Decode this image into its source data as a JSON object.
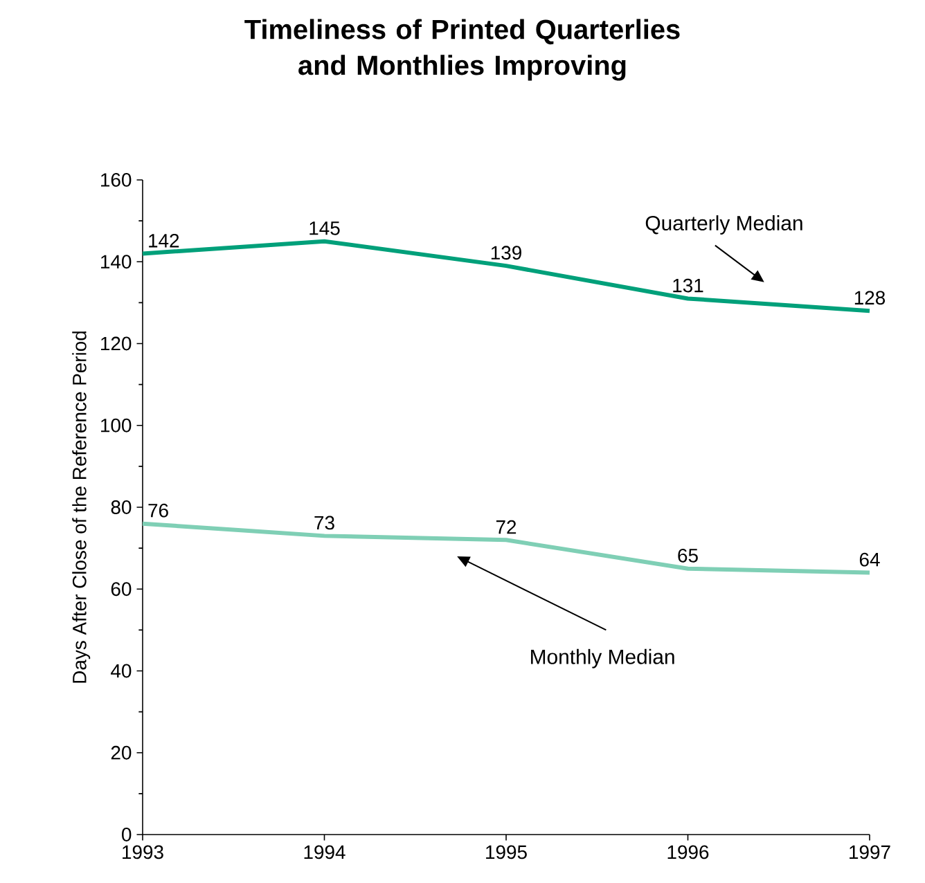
{
  "chart_data": {
    "type": "line",
    "title": "Timeliness of Printed Quarterlies and Monthlies Improving",
    "ylabel": "Days After Close of the Reference Period",
    "x": [
      1993,
      1994,
      1995,
      1996,
      1997
    ],
    "series": [
      {
        "name": "Quarterly Median",
        "color": "#00a07a",
        "values": [
          142,
          145,
          139,
          131,
          128
        ]
      },
      {
        "name": "Monthly Median",
        "color": "#7fcfb5",
        "values": [
          76,
          73,
          72,
          65,
          64
        ]
      }
    ],
    "xlim": [
      1993,
      1997
    ],
    "xticks": [
      1993,
      1994,
      1995,
      1996,
      1997
    ],
    "ylim": [
      0,
      160
    ],
    "yticks": [
      0,
      20,
      40,
      60,
      80,
      100,
      120,
      140,
      160
    ],
    "data_labels": true
  }
}
